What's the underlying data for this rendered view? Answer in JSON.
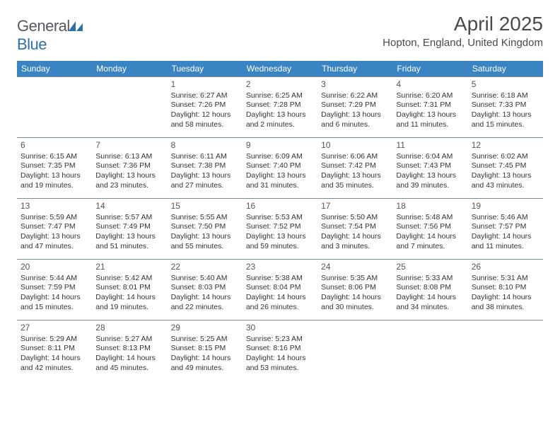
{
  "logo": {
    "text1": "General",
    "text2": "Blue"
  },
  "title": "April 2025",
  "location": "Hopton, England, United Kingdom",
  "day_headers": [
    "Sunday",
    "Monday",
    "Tuesday",
    "Wednesday",
    "Thursday",
    "Friday",
    "Saturday"
  ],
  "colors": {
    "header_bg": "#3b84c4",
    "cell_border": "#7a8a99"
  },
  "weeks": [
    [
      null,
      null,
      {
        "n": "1",
        "sr": "Sunrise: 6:27 AM",
        "ss": "Sunset: 7:26 PM",
        "dl": "Daylight: 12 hours and 58 minutes."
      },
      {
        "n": "2",
        "sr": "Sunrise: 6:25 AM",
        "ss": "Sunset: 7:28 PM",
        "dl": "Daylight: 13 hours and 2 minutes."
      },
      {
        "n": "3",
        "sr": "Sunrise: 6:22 AM",
        "ss": "Sunset: 7:29 PM",
        "dl": "Daylight: 13 hours and 6 minutes."
      },
      {
        "n": "4",
        "sr": "Sunrise: 6:20 AM",
        "ss": "Sunset: 7:31 PM",
        "dl": "Daylight: 13 hours and 11 minutes."
      },
      {
        "n": "5",
        "sr": "Sunrise: 6:18 AM",
        "ss": "Sunset: 7:33 PM",
        "dl": "Daylight: 13 hours and 15 minutes."
      }
    ],
    [
      {
        "n": "6",
        "sr": "Sunrise: 6:15 AM",
        "ss": "Sunset: 7:35 PM",
        "dl": "Daylight: 13 hours and 19 minutes."
      },
      {
        "n": "7",
        "sr": "Sunrise: 6:13 AM",
        "ss": "Sunset: 7:36 PM",
        "dl": "Daylight: 13 hours and 23 minutes."
      },
      {
        "n": "8",
        "sr": "Sunrise: 6:11 AM",
        "ss": "Sunset: 7:38 PM",
        "dl": "Daylight: 13 hours and 27 minutes."
      },
      {
        "n": "9",
        "sr": "Sunrise: 6:09 AM",
        "ss": "Sunset: 7:40 PM",
        "dl": "Daylight: 13 hours and 31 minutes."
      },
      {
        "n": "10",
        "sr": "Sunrise: 6:06 AM",
        "ss": "Sunset: 7:42 PM",
        "dl": "Daylight: 13 hours and 35 minutes."
      },
      {
        "n": "11",
        "sr": "Sunrise: 6:04 AM",
        "ss": "Sunset: 7:43 PM",
        "dl": "Daylight: 13 hours and 39 minutes."
      },
      {
        "n": "12",
        "sr": "Sunrise: 6:02 AM",
        "ss": "Sunset: 7:45 PM",
        "dl": "Daylight: 13 hours and 43 minutes."
      }
    ],
    [
      {
        "n": "13",
        "sr": "Sunrise: 5:59 AM",
        "ss": "Sunset: 7:47 PM",
        "dl": "Daylight: 13 hours and 47 minutes."
      },
      {
        "n": "14",
        "sr": "Sunrise: 5:57 AM",
        "ss": "Sunset: 7:49 PM",
        "dl": "Daylight: 13 hours and 51 minutes."
      },
      {
        "n": "15",
        "sr": "Sunrise: 5:55 AM",
        "ss": "Sunset: 7:50 PM",
        "dl": "Daylight: 13 hours and 55 minutes."
      },
      {
        "n": "16",
        "sr": "Sunrise: 5:53 AM",
        "ss": "Sunset: 7:52 PM",
        "dl": "Daylight: 13 hours and 59 minutes."
      },
      {
        "n": "17",
        "sr": "Sunrise: 5:50 AM",
        "ss": "Sunset: 7:54 PM",
        "dl": "Daylight: 14 hours and 3 minutes."
      },
      {
        "n": "18",
        "sr": "Sunrise: 5:48 AM",
        "ss": "Sunset: 7:56 PM",
        "dl": "Daylight: 14 hours and 7 minutes."
      },
      {
        "n": "19",
        "sr": "Sunrise: 5:46 AM",
        "ss": "Sunset: 7:57 PM",
        "dl": "Daylight: 14 hours and 11 minutes."
      }
    ],
    [
      {
        "n": "20",
        "sr": "Sunrise: 5:44 AM",
        "ss": "Sunset: 7:59 PM",
        "dl": "Daylight: 14 hours and 15 minutes."
      },
      {
        "n": "21",
        "sr": "Sunrise: 5:42 AM",
        "ss": "Sunset: 8:01 PM",
        "dl": "Daylight: 14 hours and 19 minutes."
      },
      {
        "n": "22",
        "sr": "Sunrise: 5:40 AM",
        "ss": "Sunset: 8:03 PM",
        "dl": "Daylight: 14 hours and 22 minutes."
      },
      {
        "n": "23",
        "sr": "Sunrise: 5:38 AM",
        "ss": "Sunset: 8:04 PM",
        "dl": "Daylight: 14 hours and 26 minutes."
      },
      {
        "n": "24",
        "sr": "Sunrise: 5:35 AM",
        "ss": "Sunset: 8:06 PM",
        "dl": "Daylight: 14 hours and 30 minutes."
      },
      {
        "n": "25",
        "sr": "Sunrise: 5:33 AM",
        "ss": "Sunset: 8:08 PM",
        "dl": "Daylight: 14 hours and 34 minutes."
      },
      {
        "n": "26",
        "sr": "Sunrise: 5:31 AM",
        "ss": "Sunset: 8:10 PM",
        "dl": "Daylight: 14 hours and 38 minutes."
      }
    ],
    [
      {
        "n": "27",
        "sr": "Sunrise: 5:29 AM",
        "ss": "Sunset: 8:11 PM",
        "dl": "Daylight: 14 hours and 42 minutes."
      },
      {
        "n": "28",
        "sr": "Sunrise: 5:27 AM",
        "ss": "Sunset: 8:13 PM",
        "dl": "Daylight: 14 hours and 45 minutes."
      },
      {
        "n": "29",
        "sr": "Sunrise: 5:25 AM",
        "ss": "Sunset: 8:15 PM",
        "dl": "Daylight: 14 hours and 49 minutes."
      },
      {
        "n": "30",
        "sr": "Sunrise: 5:23 AM",
        "ss": "Sunset: 8:16 PM",
        "dl": "Daylight: 14 hours and 53 minutes."
      },
      null,
      null,
      null
    ]
  ]
}
